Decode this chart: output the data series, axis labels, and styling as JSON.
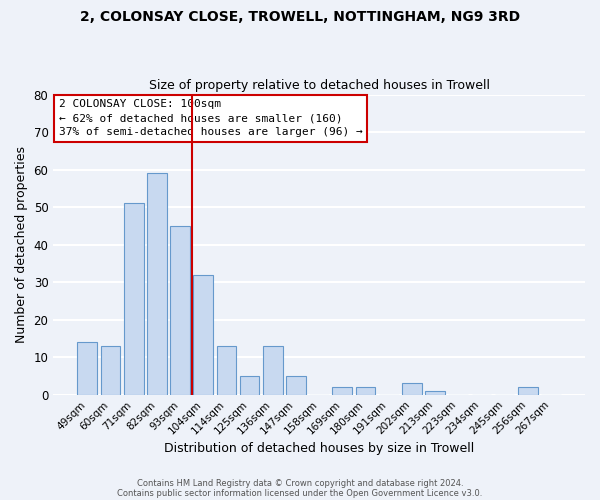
{
  "title": "2, COLONSAY CLOSE, TROWELL, NOTTINGHAM, NG9 3RD",
  "subtitle": "Size of property relative to detached houses in Trowell",
  "xlabel": "Distribution of detached houses by size in Trowell",
  "ylabel": "Number of detached properties",
  "bar_color": "#c8d9f0",
  "bar_edge_color": "#6699cc",
  "background_color": "#eef2f9",
  "grid_color": "white",
  "categories": [
    "49sqm",
    "60sqm",
    "71sqm",
    "82sqm",
    "93sqm",
    "104sqm",
    "114sqm",
    "125sqm",
    "136sqm",
    "147sqm",
    "158sqm",
    "169sqm",
    "180sqm",
    "191sqm",
    "202sqm",
    "213sqm",
    "223sqm",
    "234sqm",
    "245sqm",
    "256sqm",
    "267sqm"
  ],
  "values": [
    14,
    13,
    51,
    59,
    45,
    32,
    13,
    5,
    13,
    5,
    0,
    2,
    2,
    0,
    3,
    1,
    0,
    0,
    0,
    2,
    0
  ],
  "ylim": [
    0,
    80
  ],
  "yticks": [
    0,
    10,
    20,
    30,
    40,
    50,
    60,
    70,
    80
  ],
  "vline_x": 4.5,
  "vline_color": "#cc0000",
  "annotation_title": "2 COLONSAY CLOSE: 100sqm",
  "annotation_line1": "← 62% of detached houses are smaller (160)",
  "annotation_line2": "37% of semi-detached houses are larger (96) →",
  "footer1": "Contains HM Land Registry data © Crown copyright and database right 2024.",
  "footer2": "Contains public sector information licensed under the Open Government Licence v3.0."
}
